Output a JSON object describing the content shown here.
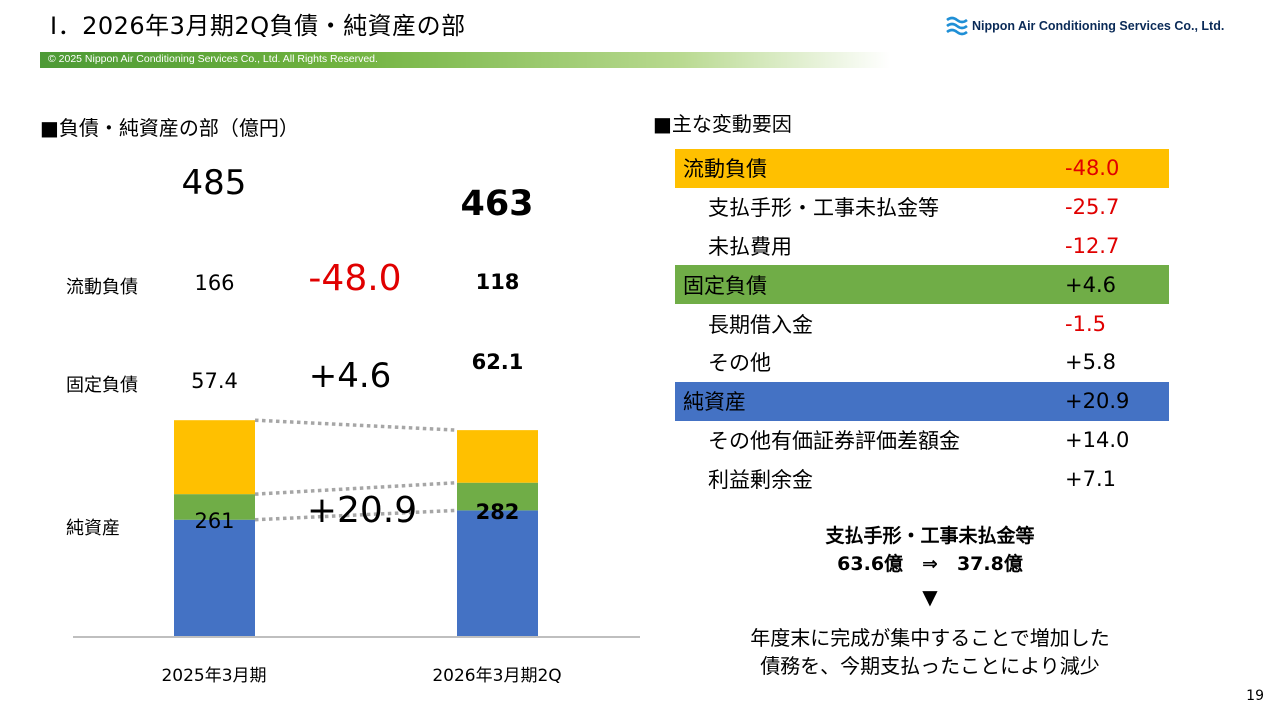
{
  "header": {
    "title": "Ⅰ．2026年3月期2Q負債・純資産の部",
    "company": "Nippon Air Conditioning Services Co., Ltd.",
    "copyright": "© 2025 Nippon Air Conditioning Services Co., Ltd. All Rights Reserved."
  },
  "chart_title": "■負債・純資産の部（億円）",
  "chart_data": {
    "type": "bar",
    "stacked": true,
    "title": "負債・純資産の部（億円）",
    "categories": [
      "2025年3月期",
      "2026年3月期2Q"
    ],
    "series": [
      {
        "name": "純資産",
        "values": [
          261,
          282
        ],
        "labels": [
          "261",
          "282"
        ],
        "color": "#4472c4"
      },
      {
        "name": "固定負債",
        "values": [
          57.4,
          62.1
        ],
        "labels": [
          "57.4",
          "62.1"
        ],
        "color": "#70ad47"
      },
      {
        "name": "流動負債",
        "values": [
          166,
          118
        ],
        "labels": [
          "166",
          "118"
        ],
        "color": "#ffc000"
      }
    ],
    "totals": [
      "485",
      "463"
    ],
    "deltas": {
      "current": "-48.0",
      "fixed": "+4.6",
      "net": "+20.9"
    },
    "ylim": [
      0,
      520
    ]
  },
  "factors": {
    "title": "■主な変動要因",
    "rows": [
      {
        "name": "流動負債",
        "value": "-48.0"
      },
      {
        "name": "支払手形・工事未払金等",
        "value": "-25.7"
      },
      {
        "name": "未払費用",
        "value": "-12.7"
      },
      {
        "name": "固定負債",
        "value": "+4.6"
      },
      {
        "name": "長期借入金",
        "value": "-1.5"
      },
      {
        "name": "その他",
        "value": "+5.8"
      },
      {
        "name": "純資産",
        "value": "+20.9"
      },
      {
        "name": "その他有価証券評価差額金",
        "value": "+14.0"
      },
      {
        "name": "利益剰余金",
        "value": "+7.1"
      }
    ],
    "colors": {
      "current": "#ffc000",
      "fixed": "#70ad47",
      "net": "#4472c4",
      "negative": "#e00000"
    }
  },
  "note": {
    "heading": "支払手形・工事未払金等",
    "change": "63.6億　⇒　37.8億",
    "arrow": "▼"
  },
  "conclusion": [
    "年度末に完成が集中することで増加した",
    "債務を、今期支払ったことにより減少"
  ],
  "page_number": "19"
}
